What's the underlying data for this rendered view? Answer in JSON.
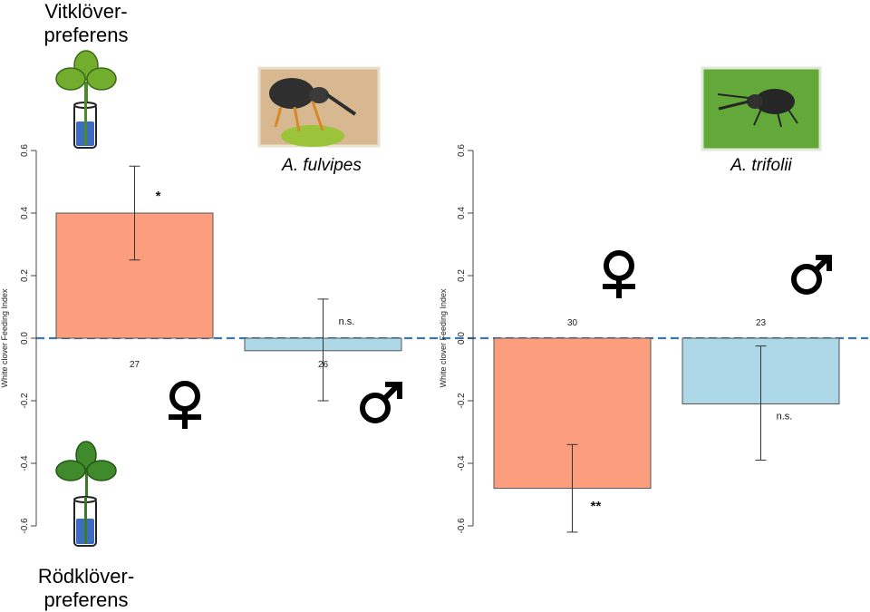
{
  "labels": {
    "top_line1": "Vitklöver-",
    "top_line2": "preferens",
    "bottom_line1": "Rödklöver-",
    "bottom_line2": "preferens"
  },
  "colors": {
    "female_bar": "#fc9e7e",
    "male_bar": "#acd8e8",
    "zero_line": "#3f76a8",
    "plant_green": "#72ad2d",
    "plant_dark_green": "#3f8a2b",
    "tube_water": "#3d6cc0"
  },
  "icons": {
    "white_clover": "white-clover-plant-icon",
    "red_clover": "red-clover-plant-icon",
    "female": "female-symbol-icon",
    "male": "male-symbol-icon",
    "weevil_fulvipes": "weevil-photo-fulvipes",
    "weevil_trifolii": "weevil-photo-trifolii"
  },
  "chart_data": [
    {
      "type": "bar",
      "title": "A. fulvipes",
      "ylabel": "White clover Feeding Index",
      "ylim": [
        -0.6,
        0.6
      ],
      "yticks": [
        "-0.6",
        "-0.4",
        "-0.2",
        "0.0",
        "0.2",
        "0.4",
        "0.6"
      ],
      "categories": [
        "♀",
        "♂"
      ],
      "values": [
        0.4,
        -0.04
      ],
      "error_low": [
        0.25,
        -0.2
      ],
      "error_high": [
        0.55,
        0.125
      ],
      "n": [
        "27",
        "26"
      ],
      "significance": [
        "*",
        "n.s."
      ],
      "zero_line": "dashed",
      "grid": false
    },
    {
      "type": "bar",
      "title": "A. trifolii",
      "ylabel": "White clover Feeding Index",
      "ylim": [
        -0.6,
        0.6
      ],
      "yticks": [
        "-0.6",
        "-0.4",
        "-0.2",
        "0.0",
        "0.2",
        "0.4",
        "0.6"
      ],
      "categories": [
        "♀",
        "♂"
      ],
      "values": [
        -0.48,
        -0.21
      ],
      "error_low": [
        -0.62,
        -0.39
      ],
      "error_high": [
        -0.34,
        -0.025
      ],
      "n": [
        "30",
        "23"
      ],
      "significance": [
        "**",
        "n.s."
      ],
      "zero_line": "dashed",
      "grid": false
    }
  ]
}
